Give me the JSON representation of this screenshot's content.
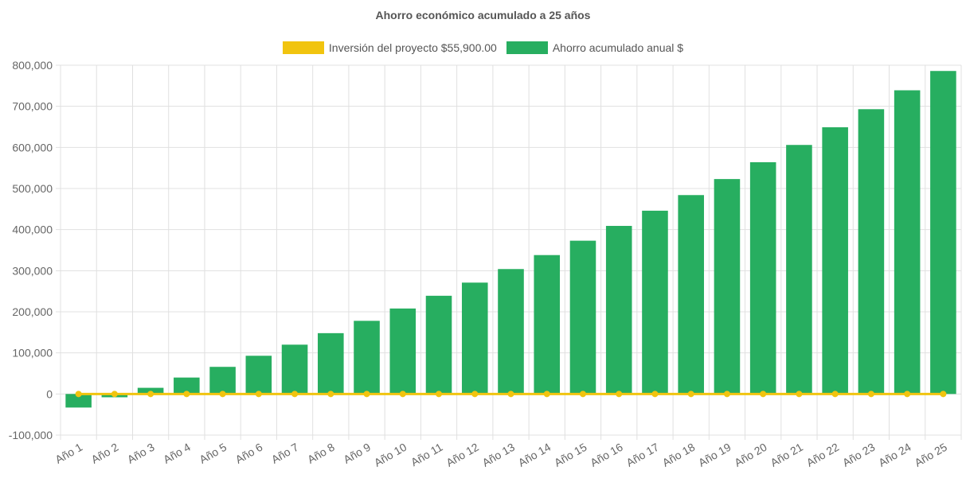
{
  "colors": {
    "bar": "#27ae60",
    "line": "#f1c40f",
    "grid": "#e0e0e0",
    "text": "#666666"
  },
  "chart_data": {
    "type": "bar",
    "title": "Ahorro económico acumulado a 25 años",
    "xlabel": "",
    "ylabel": "",
    "ylim": [
      -100000,
      800000
    ],
    "yticks": [
      800000,
      700000,
      600000,
      500000,
      400000,
      300000,
      200000,
      100000,
      0,
      -100000
    ],
    "ytick_labels": [
      "800,000",
      "700,000",
      "600,000",
      "500,000",
      "400,000",
      "300,000",
      "200,000",
      "100,000",
      "0",
      "-100,000"
    ],
    "grid": true,
    "legend_position": "top-center",
    "categories": [
      "Año 1",
      "Año 2",
      "Año 3",
      "Año 4",
      "Año 5",
      "Año 6",
      "Año 7",
      "Año 8",
      "Año 9",
      "Año 10",
      "Año 11",
      "Año 12",
      "Año 13",
      "Año 14",
      "Año 15",
      "Año 16",
      "Año 17",
      "Año 18",
      "Año 19",
      "Año 20",
      "Año 21",
      "Año 22",
      "Año 23",
      "Año 24",
      "Año 25"
    ],
    "series": [
      {
        "name": "Inversión del proyecto $55,900.00",
        "kind": "line",
        "values": [
          0,
          0,
          0,
          0,
          0,
          0,
          0,
          0,
          0,
          0,
          0,
          0,
          0,
          0,
          0,
          0,
          0,
          0,
          0,
          0,
          0,
          0,
          0,
          0,
          0
        ]
      },
      {
        "name": "Ahorro acumulado anual $",
        "kind": "bar",
        "values": [
          -33000,
          -8000,
          15000,
          40000,
          66000,
          93000,
          120000,
          148000,
          178000,
          208000,
          239000,
          271000,
          304000,
          338000,
          373000,
          409000,
          446000,
          484000,
          523000,
          564000,
          606000,
          649000,
          693000,
          739000,
          786000
        ]
      }
    ]
  }
}
